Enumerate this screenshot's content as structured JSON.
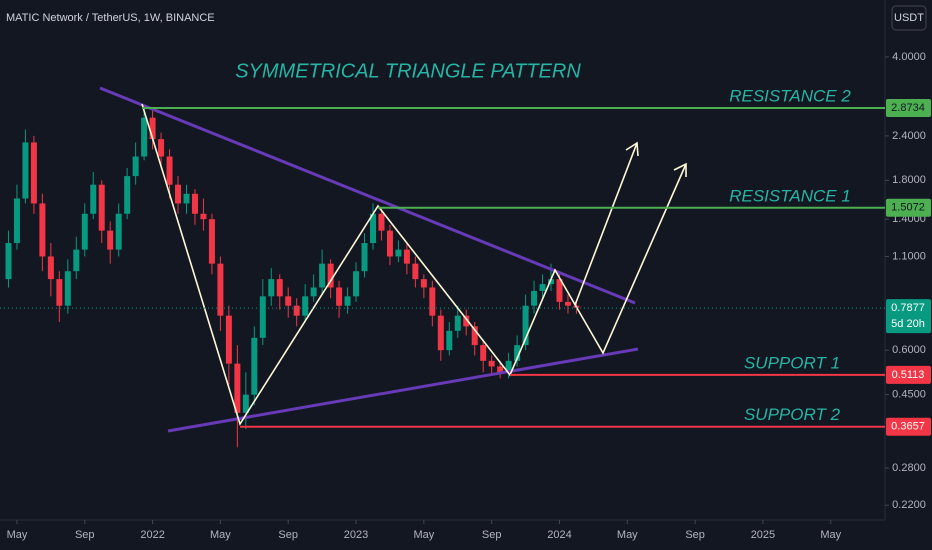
{
  "chart_data": {
    "type": "candlestick",
    "title": "MATIC Network / TetherUS, 1W, BINANCE",
    "currency": "USDT",
    "annotation": "SYMMETRICAL TRIANGLE PATTERN",
    "log_scale": true,
    "grid": false,
    "up_color": "#089981",
    "down_color": "#f23645",
    "ylim": [
      0.2,
      5.78
    ],
    "yticks": [
      {
        "value": 4,
        "label": "4.0000"
      },
      {
        "value": 2.4,
        "label": "2.4000"
      },
      {
        "value": 1.8,
        "label": "1.8000"
      },
      {
        "value": 1.4,
        "label": "1.4000"
      },
      {
        "value": 1.1,
        "label": "1.1000"
      },
      {
        "value": 0.6,
        "label": "0.6000"
      },
      {
        "value": 0.45,
        "label": "0.4500"
      },
      {
        "value": 0.28,
        "label": "0.2800"
      },
      {
        "value": 0.22,
        "label": "0.2200"
      }
    ],
    "xlim": [
      -1,
      51.2
    ],
    "xticks": [
      {
        "value": 0,
        "label": "May"
      },
      {
        "value": 4,
        "label": "Sep"
      },
      {
        "value": 8,
        "label": "2022"
      },
      {
        "value": 12,
        "label": "May"
      },
      {
        "value": 16,
        "label": "Sep"
      },
      {
        "value": 20,
        "label": "2023"
      },
      {
        "value": 24,
        "label": "May"
      },
      {
        "value": 28,
        "label": "Sep"
      },
      {
        "value": 32,
        "label": "2024"
      },
      {
        "value": 36,
        "label": "May"
      },
      {
        "value": 40,
        "label": "Sep"
      },
      {
        "value": 44,
        "label": "2025"
      },
      {
        "value": 48,
        "label": "May"
      }
    ],
    "x": [
      -0.5,
      0,
      0.5,
      1,
      1.5,
      2,
      2.5,
      3,
      3.5,
      4,
      4.5,
      5,
      5.5,
      6,
      6.5,
      7,
      7.5,
      8,
      8.5,
      9,
      9.5,
      10,
      10.5,
      11,
      11.5,
      12,
      12.5,
      13,
      13.5,
      14,
      14.5,
      15,
      15.5,
      16,
      16.5,
      17,
      17.5,
      18,
      18.5,
      19,
      19.5,
      20,
      20.5,
      21,
      21.5,
      22,
      22.5,
      23,
      23.5,
      24,
      24.5,
      25,
      25.5,
      26,
      26.5,
      27,
      27.5,
      28,
      28.5,
      29,
      29.5,
      30,
      30.5,
      31,
      31.5,
      32,
      32.5,
      33
    ],
    "ohlc": [
      [
        0.95,
        1.3,
        0.9,
        1.2
      ],
      [
        1.2,
        1.75,
        1.15,
        1.6
      ],
      [
        1.6,
        2.5,
        1.55,
        2.3
      ],
      [
        2.3,
        2.4,
        1.45,
        1.55
      ],
      [
        1.55,
        1.65,
        1.0,
        1.1
      ],
      [
        1.1,
        1.2,
        0.85,
        0.95
      ],
      [
        0.95,
        1.0,
        0.72,
        0.8
      ],
      [
        0.8,
        1.08,
        0.76,
        1.0
      ],
      [
        1.0,
        1.25,
        0.95,
        1.15
      ],
      [
        1.15,
        1.55,
        1.1,
        1.45
      ],
      [
        1.45,
        1.9,
        1.4,
        1.75
      ],
      [
        1.75,
        1.8,
        1.2,
        1.3
      ],
      [
        1.3,
        1.38,
        1.05,
        1.15
      ],
      [
        1.15,
        1.55,
        1.1,
        1.45
      ],
      [
        1.45,
        1.95,
        1.4,
        1.85
      ],
      [
        1.85,
        2.3,
        1.75,
        2.1
      ],
      [
        2.1,
        2.92,
        2.05,
        2.7
      ],
      [
        2.7,
        2.85,
        2.2,
        2.35
      ],
      [
        2.35,
        2.45,
        1.95,
        2.1
      ],
      [
        2.1,
        2.2,
        1.6,
        1.75
      ],
      [
        1.75,
        1.85,
        1.45,
        1.55
      ],
      [
        1.55,
        1.75,
        1.45,
        1.65
      ],
      [
        1.65,
        1.7,
        1.35,
        1.45
      ],
      [
        1.45,
        1.6,
        1.3,
        1.4
      ],
      [
        1.4,
        1.45,
        0.98,
        1.05
      ],
      [
        1.05,
        1.1,
        0.68,
        0.75
      ],
      [
        0.75,
        0.8,
        0.48,
        0.55
      ],
      [
        0.55,
        0.62,
        0.32,
        0.4
      ],
      [
        0.4,
        0.52,
        0.36,
        0.45
      ],
      [
        0.45,
        0.7,
        0.42,
        0.65
      ],
      [
        0.65,
        0.95,
        0.62,
        0.85
      ],
      [
        0.85,
        1.02,
        0.8,
        0.95
      ],
      [
        0.95,
        0.98,
        0.78,
        0.85
      ],
      [
        0.85,
        0.9,
        0.74,
        0.8
      ],
      [
        0.8,
        0.84,
        0.7,
        0.75
      ],
      [
        0.75,
        0.92,
        0.72,
        0.85
      ],
      [
        0.85,
        0.98,
        0.82,
        0.9
      ],
      [
        0.9,
        1.15,
        0.86,
        1.05
      ],
      [
        1.05,
        1.08,
        0.84,
        0.9
      ],
      [
        0.9,
        0.94,
        0.74,
        0.8
      ],
      [
        0.8,
        0.9,
        0.76,
        0.85
      ],
      [
        0.85,
        1.06,
        0.82,
        1.0
      ],
      [
        1.0,
        1.28,
        0.96,
        1.2
      ],
      [
        1.2,
        1.55,
        1.15,
        1.45
      ],
      [
        1.45,
        1.5,
        1.22,
        1.3
      ],
      [
        1.3,
        1.35,
        1.04,
        1.1
      ],
      [
        1.1,
        1.22,
        1.06,
        1.15
      ],
      [
        1.15,
        1.2,
        0.98,
        1.05
      ],
      [
        1.05,
        1.1,
        0.9,
        0.95
      ],
      [
        0.95,
        0.98,
        0.84,
        0.9
      ],
      [
        0.9,
        0.94,
        0.7,
        0.75
      ],
      [
        0.75,
        0.78,
        0.56,
        0.6
      ],
      [
        0.6,
        0.72,
        0.58,
        0.68
      ],
      [
        0.68,
        0.8,
        0.65,
        0.75
      ],
      [
        0.75,
        0.78,
        0.66,
        0.7
      ],
      [
        0.7,
        0.72,
        0.58,
        0.62
      ],
      [
        0.62,
        0.64,
        0.52,
        0.56
      ],
      [
        0.56,
        0.58,
        0.51,
        0.54
      ],
      [
        0.54,
        0.56,
        0.5,
        0.52
      ],
      [
        0.52,
        0.59,
        0.5,
        0.56
      ],
      [
        0.56,
        0.66,
        0.54,
        0.62
      ],
      [
        0.62,
        0.86,
        0.6,
        0.8
      ],
      [
        0.8,
        0.94,
        0.76,
        0.88
      ],
      [
        0.88,
        0.98,
        0.84,
        0.92
      ],
      [
        0.92,
        1.05,
        0.88,
        0.95
      ],
      [
        0.95,
        0.98,
        0.78,
        0.82
      ],
      [
        0.82,
        0.86,
        0.76,
        0.8
      ],
      [
        0.8,
        0.83,
        0.76,
        0.79
      ]
    ],
    "levels": [
      {
        "name": "RESISTANCE 2",
        "value": 2.8734,
        "color": "#4caf50"
      },
      {
        "name": "RESISTANCE 1",
        "value": 1.5072,
        "color": "#4caf50"
      },
      {
        "name": "SUPPORT 1",
        "value": 0.5113,
        "color": "#f23645"
      },
      {
        "name": "SUPPORT 2",
        "value": 0.3657,
        "color": "#f23645"
      }
    ],
    "last_price": {
      "value": 0.7877,
      "countdown": "5d 20h",
      "color": "#089981"
    }
  }
}
